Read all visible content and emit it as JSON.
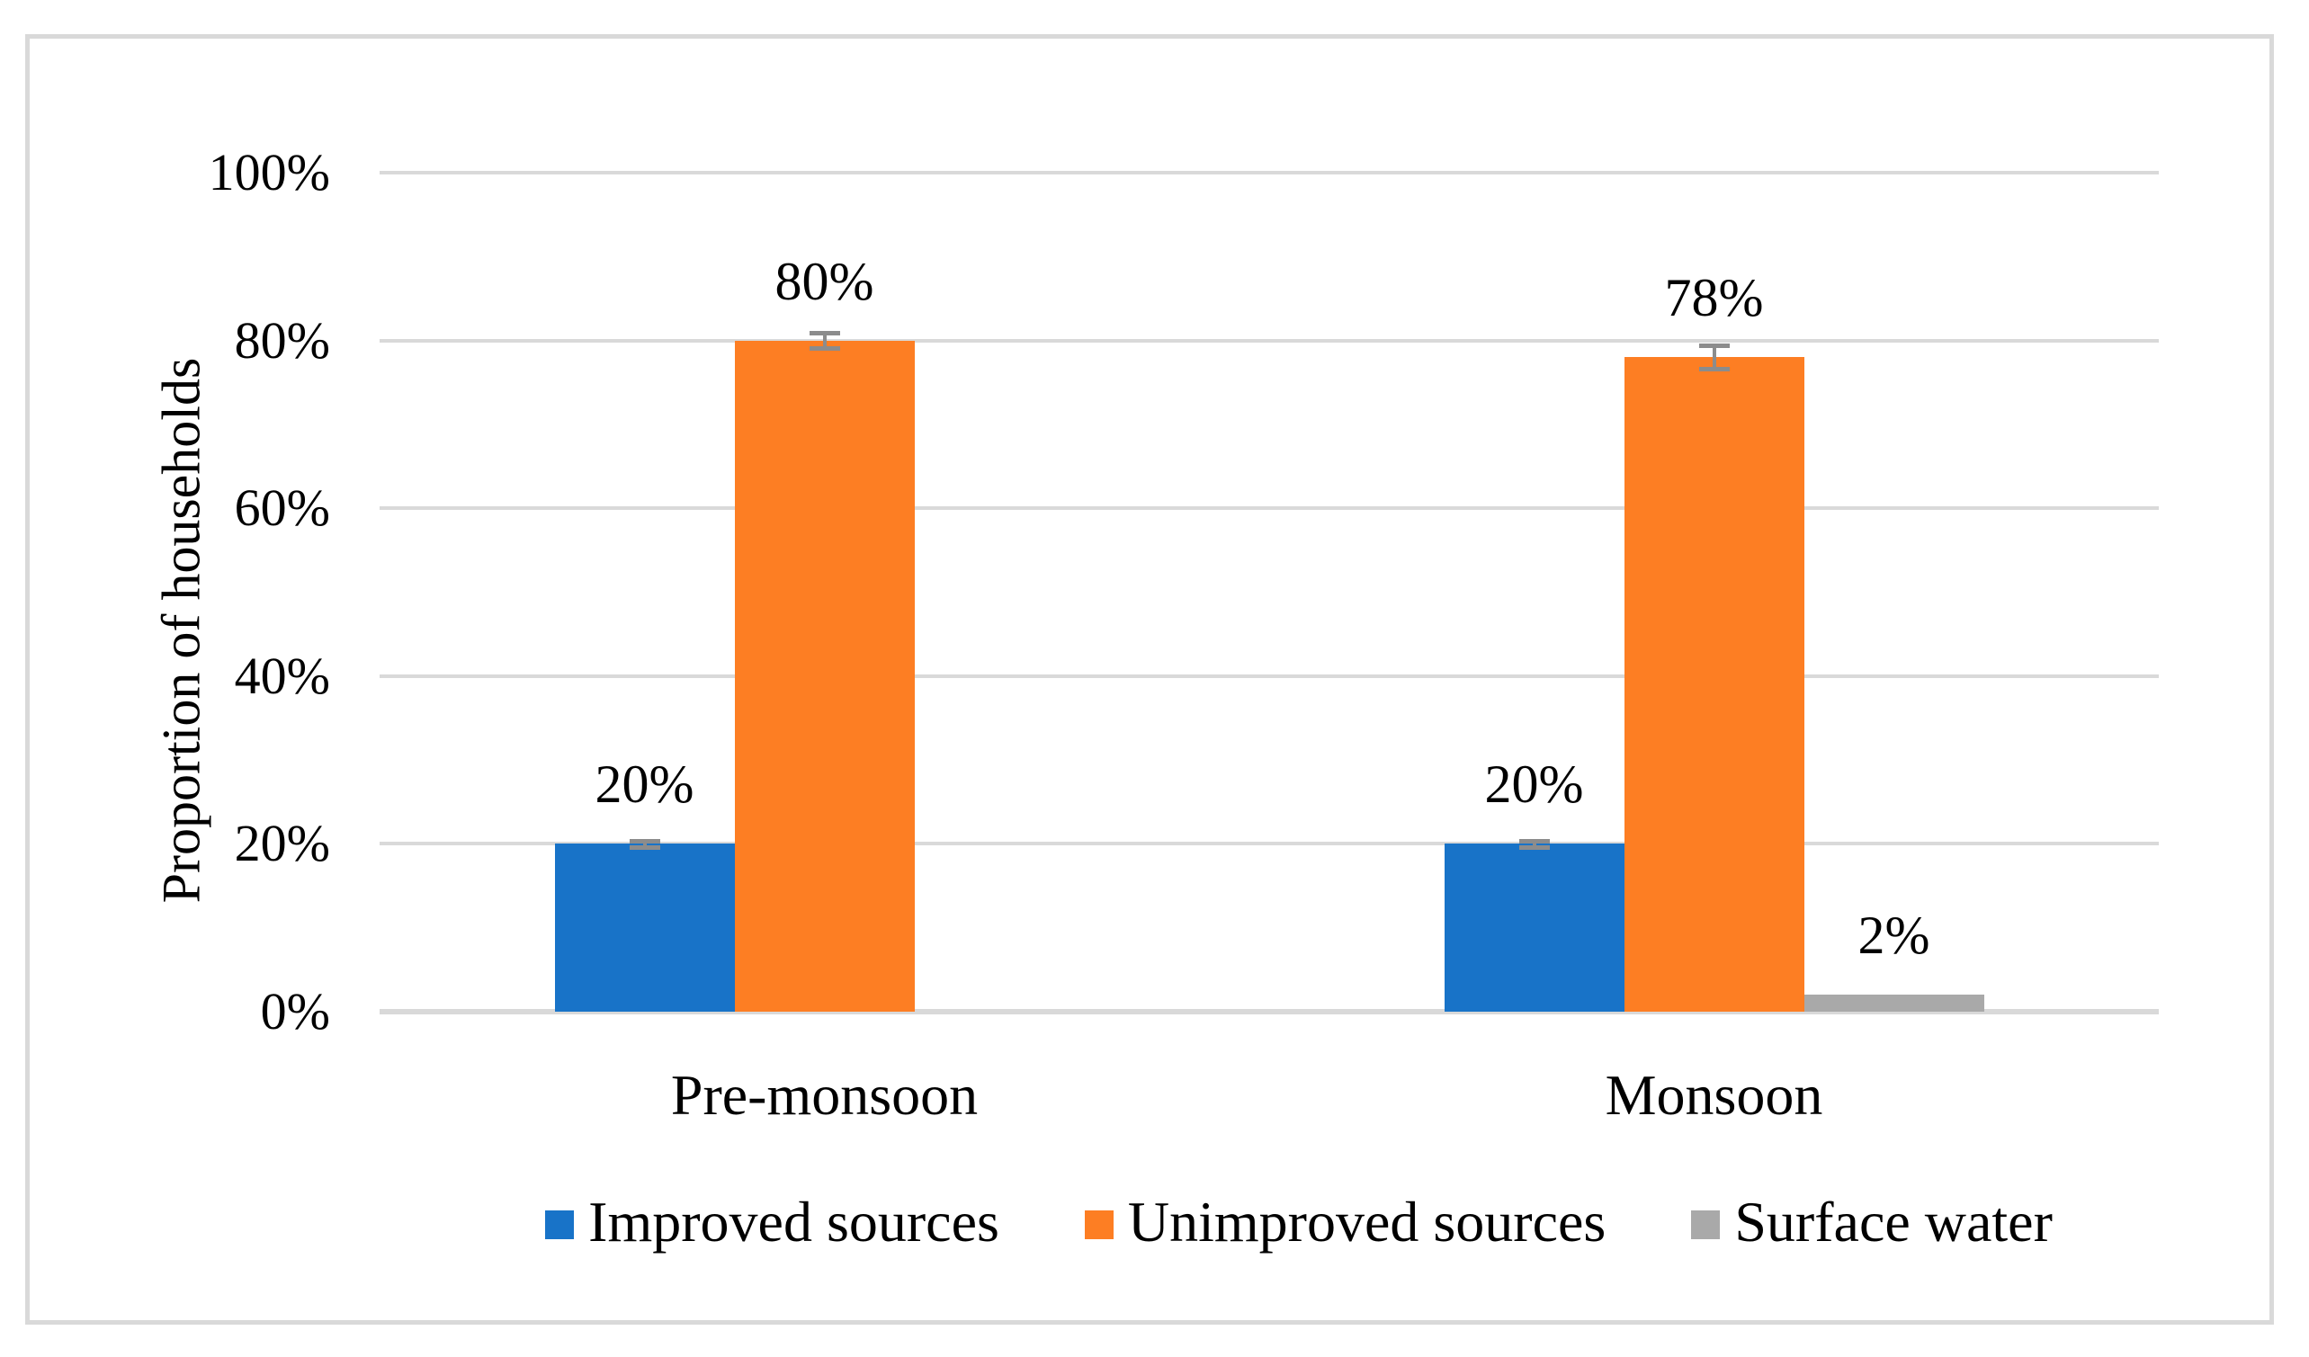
{
  "page": {
    "background": "#FFFFFF",
    "frame_border_color": "#D9D9D9"
  },
  "chart_data": {
    "type": "bar",
    "title": "",
    "xlabel": "",
    "ylabel": "Proportion of households",
    "categories": [
      "Pre-monsoon",
      "Monsoon"
    ],
    "series": [
      {
        "name": "Improved sources",
        "color": "#1873C8",
        "values": [
          20,
          20
        ],
        "labels": [
          "20%",
          "20%"
        ],
        "errors_pct": [
          0.35,
          0.35
        ]
      },
      {
        "name": "Unimproved sources",
        "color": "#FD7E23",
        "values": [
          80,
          78
        ],
        "labels": [
          "80%",
          "78%"
        ],
        "errors_pct": [
          0.9,
          1.4
        ]
      },
      {
        "name": "Surface water",
        "color": "#A9A9A9",
        "values": [
          0,
          2
        ],
        "labels": [
          "",
          "2%"
        ],
        "errors_pct": [
          0,
          0
        ]
      }
    ],
    "ylim": [
      0,
      100
    ],
    "yticks": [
      0,
      20,
      40,
      60,
      80,
      100
    ],
    "ytick_labels": [
      "0%",
      "20%",
      "40%",
      "60%",
      "80%",
      "100%"
    ],
    "grid": true,
    "gridline_color": "#D9D9D9",
    "axis_line_color": "#D9D9D9",
    "error_bar_color": "#8C8C8C",
    "legend_position": "bottom"
  }
}
